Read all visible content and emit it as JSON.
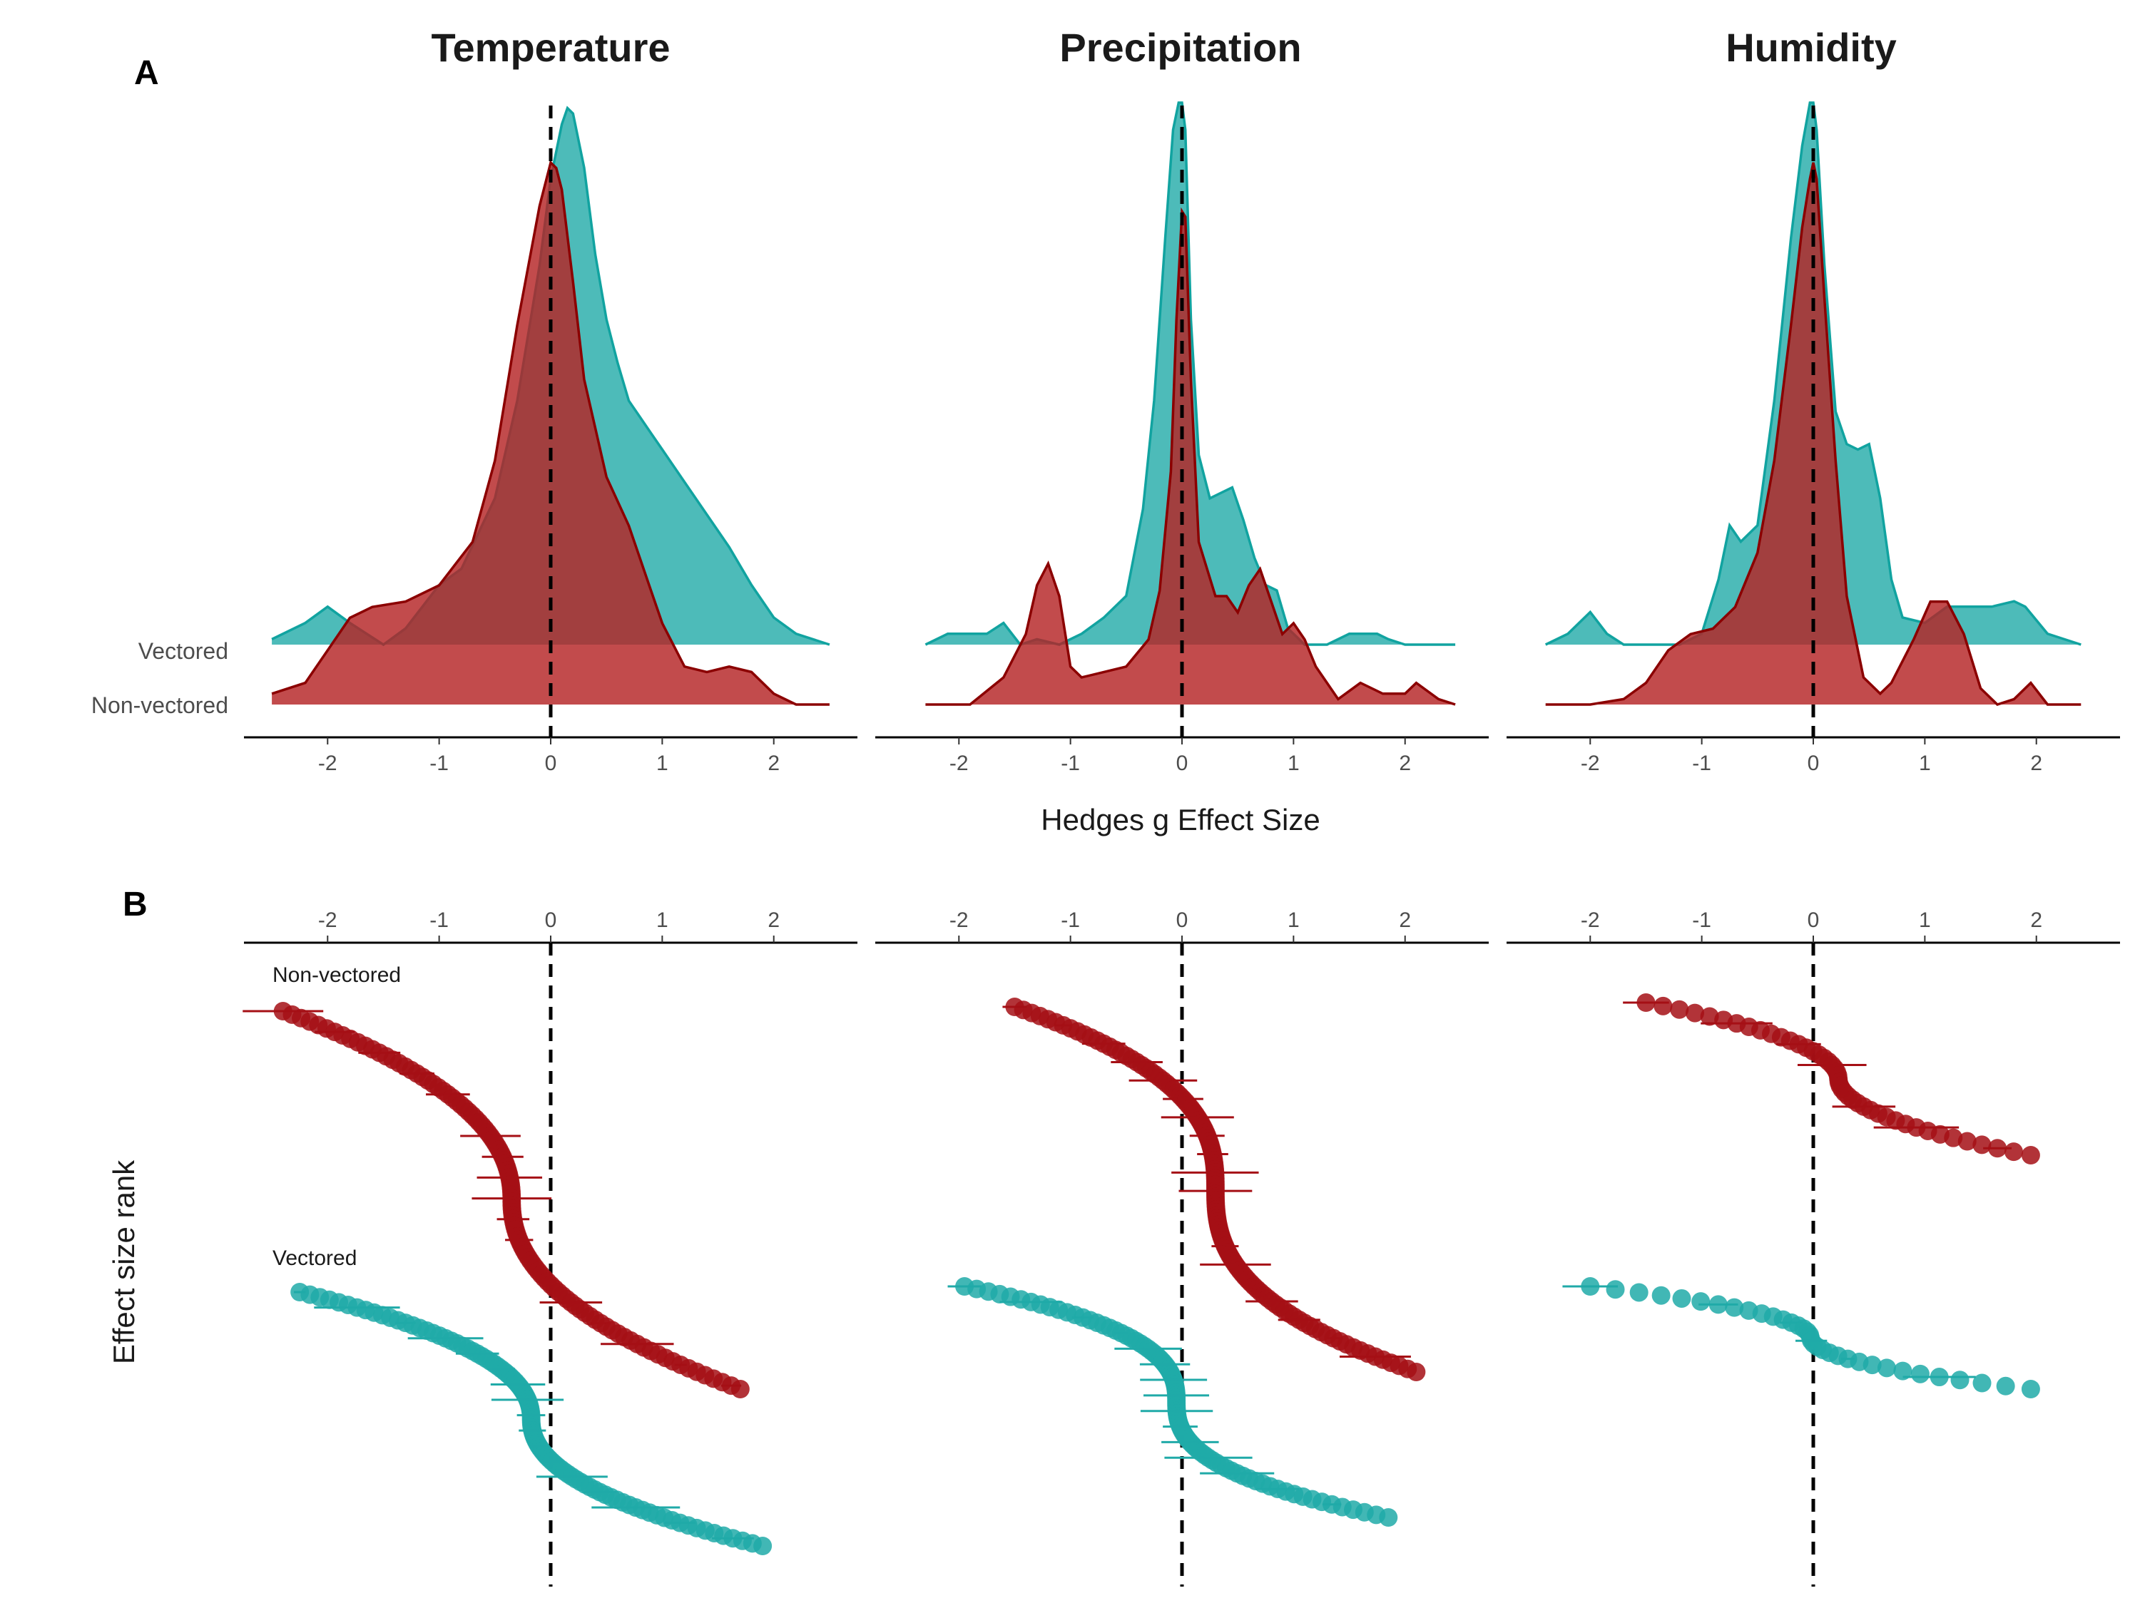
{
  "figure": {
    "panel_letters": [
      "A",
      "B"
    ],
    "x_axis_title": "Hedges g Effect Size",
    "y_axis_title_b": "Effect size rank"
  },
  "colors": {
    "vectored": "#20aaa8",
    "vectored_line": "#11a3a0",
    "non_vectored": "#b52325",
    "non_vectored_line": "#8b0000",
    "non_vectored_dot": "#a50f15",
    "overlap": "#853d3d",
    "reference_line": "#000000"
  },
  "chart_data": [
    {
      "type": "area",
      "panel": "A",
      "title": "Temperature",
      "xlabel": "Hedges g Effect Size",
      "xticks": [
        -2,
        -1,
        0,
        1,
        2
      ],
      "xlim": [
        -2.75,
        2.75
      ],
      "row_labels": [
        "Vectored",
        "Non-vectored"
      ],
      "reference_line_x": 0,
      "series": [
        {
          "name": "Vectored",
          "x": [
            -2.5,
            -2.2,
            -2.0,
            -1.8,
            -1.5,
            -1.3,
            -1.0,
            -0.8,
            -0.5,
            -0.3,
            -0.1,
            0.0,
            0.1,
            0.15,
            0.2,
            0.3,
            0.4,
            0.5,
            0.6,
            0.7,
            0.8,
            0.9,
            1.0,
            1.2,
            1.4,
            1.6,
            1.8,
            2.0,
            2.2,
            2.5
          ],
          "density": [
            0.01,
            0.04,
            0.07,
            0.04,
            0.0,
            0.03,
            0.11,
            0.14,
            0.27,
            0.45,
            0.7,
            0.86,
            0.96,
            0.99,
            0.98,
            0.88,
            0.72,
            0.6,
            0.52,
            0.45,
            0.42,
            0.39,
            0.36,
            0.3,
            0.24,
            0.18,
            0.11,
            0.05,
            0.02,
            0.0
          ]
        },
        {
          "name": "Non-vectored",
          "x": [
            -2.5,
            -2.2,
            -2.0,
            -1.8,
            -1.6,
            -1.3,
            -1.0,
            -0.7,
            -0.5,
            -0.3,
            -0.1,
            0.0,
            0.05,
            0.1,
            0.2,
            0.3,
            0.5,
            0.7,
            0.9,
            1.0,
            1.2,
            1.4,
            1.6,
            1.8,
            2.0,
            2.2,
            2.5
          ],
          "density": [
            0.02,
            0.04,
            0.1,
            0.16,
            0.18,
            0.19,
            0.22,
            0.3,
            0.45,
            0.7,
            0.92,
            1.0,
            0.99,
            0.95,
            0.78,
            0.6,
            0.42,
            0.33,
            0.21,
            0.15,
            0.07,
            0.06,
            0.07,
            0.06,
            0.02,
            0.0,
            0.0
          ]
        }
      ]
    },
    {
      "type": "area",
      "panel": "A",
      "title": "Precipitation",
      "xlabel": "Hedges g Effect Size",
      "xticks": [
        -2,
        -1,
        0,
        1,
        2
      ],
      "xlim": [
        -2.75,
        2.75
      ],
      "row_labels": [
        "Vectored",
        "Non-vectored"
      ],
      "reference_line_x": 0,
      "series": [
        {
          "name": "Vectored",
          "x": [
            -2.3,
            -2.1,
            -1.9,
            -1.75,
            -1.6,
            -1.45,
            -1.3,
            -1.1,
            -0.9,
            -0.7,
            -0.5,
            -0.35,
            -0.25,
            -0.15,
            -0.08,
            -0.03,
            0.0,
            0.03,
            0.08,
            0.15,
            0.25,
            0.35,
            0.45,
            0.55,
            0.65,
            0.75,
            0.85,
            0.95,
            1.1,
            1.3,
            1.5,
            1.6,
            1.75,
            1.85,
            2.0,
            2.2,
            2.45
          ],
          "density": [
            0.0,
            0.02,
            0.02,
            0.02,
            0.04,
            0.0,
            0.01,
            0.0,
            0.02,
            0.05,
            0.09,
            0.25,
            0.45,
            0.75,
            0.95,
            1.0,
            1.0,
            0.95,
            0.6,
            0.35,
            0.27,
            0.28,
            0.29,
            0.23,
            0.16,
            0.11,
            0.1,
            0.03,
            0.0,
            0.0,
            0.02,
            0.02,
            0.02,
            0.01,
            0.0,
            0.0,
            0.0
          ]
        },
        {
          "name": "Non-vectored",
          "x": [
            -2.3,
            -1.9,
            -1.6,
            -1.4,
            -1.3,
            -1.2,
            -1.1,
            -1.0,
            -0.9,
            -0.7,
            -0.5,
            -0.3,
            -0.2,
            -0.1,
            -0.05,
            0.0,
            0.03,
            0.08,
            0.15,
            0.3,
            0.4,
            0.5,
            0.6,
            0.7,
            0.8,
            0.9,
            1.0,
            1.1,
            1.2,
            1.4,
            1.6,
            1.8,
            2.0,
            2.1,
            2.3,
            2.45
          ],
          "density": [
            0.0,
            0.0,
            0.05,
            0.13,
            0.22,
            0.26,
            0.2,
            0.07,
            0.05,
            0.06,
            0.07,
            0.12,
            0.21,
            0.43,
            0.71,
            0.91,
            0.9,
            0.6,
            0.3,
            0.2,
            0.2,
            0.17,
            0.22,
            0.25,
            0.19,
            0.13,
            0.15,
            0.12,
            0.07,
            0.01,
            0.04,
            0.02,
            0.02,
            0.04,
            0.01,
            0.0
          ]
        }
      ]
    },
    {
      "type": "area",
      "panel": "A",
      "title": "Humidity",
      "xlabel": "Hedges g Effect Size",
      "xticks": [
        -2,
        -1,
        0,
        1,
        2
      ],
      "xlim": [
        -2.75,
        2.75
      ],
      "row_labels": [
        "Vectored",
        "Non-vectored"
      ],
      "reference_line_x": 0,
      "series": [
        {
          "name": "Vectored",
          "x": [
            -2.4,
            -2.2,
            -2.0,
            -1.85,
            -1.7,
            -1.4,
            -1.2,
            -1.0,
            -0.85,
            -0.75,
            -0.65,
            -0.5,
            -0.35,
            -0.2,
            -0.1,
            -0.03,
            0.0,
            0.03,
            0.1,
            0.2,
            0.3,
            0.4,
            0.5,
            0.6,
            0.7,
            0.8,
            1.0,
            1.2,
            1.4,
            1.6,
            1.8,
            1.9,
            2.1,
            2.4
          ],
          "density": [
            0.0,
            0.02,
            0.06,
            0.02,
            0.0,
            0.0,
            0.0,
            0.02,
            0.12,
            0.22,
            0.19,
            0.22,
            0.45,
            0.75,
            0.92,
            1.0,
            1.0,
            0.95,
            0.7,
            0.43,
            0.37,
            0.36,
            0.37,
            0.27,
            0.12,
            0.05,
            0.04,
            0.07,
            0.07,
            0.07,
            0.08,
            0.07,
            0.02,
            0.0
          ]
        },
        {
          "name": "Non-vectored",
          "x": [
            -2.4,
            -2.0,
            -1.7,
            -1.5,
            -1.3,
            -1.1,
            -0.9,
            -0.7,
            -0.5,
            -0.35,
            -0.2,
            -0.1,
            -0.03,
            0.0,
            0.03,
            0.1,
            0.2,
            0.3,
            0.45,
            0.6,
            0.7,
            0.8,
            0.9,
            1.05,
            1.2,
            1.35,
            1.5,
            1.65,
            1.8,
            1.95,
            2.1,
            2.4
          ],
          "density": [
            0.0,
            0.0,
            0.01,
            0.04,
            0.1,
            0.13,
            0.14,
            0.18,
            0.28,
            0.45,
            0.7,
            0.88,
            0.97,
            1.0,
            0.97,
            0.75,
            0.45,
            0.2,
            0.05,
            0.02,
            0.04,
            0.08,
            0.12,
            0.19,
            0.19,
            0.13,
            0.03,
            0.0,
            0.01,
            0.04,
            0.0,
            0.0
          ]
        }
      ]
    },
    {
      "type": "scatter",
      "panel": "B",
      "title": "Temperature",
      "ylabel": "Effect size rank",
      "xticks": [
        -2,
        -1,
        0,
        1,
        2
      ],
      "xlim": [
        -2.75,
        2.75
      ],
      "reference_line_x": 0,
      "series": [
        {
          "name": "Non-vectored",
          "start_x": -2.4,
          "end_x": 1.7,
          "n": 110,
          "shape": "sigmoid"
        },
        {
          "name": "Vectored",
          "start_x": -2.25,
          "end_x": 1.9,
          "n": 100,
          "shape": "sigmoid"
        }
      ]
    },
    {
      "type": "scatter",
      "panel": "B",
      "title": "Precipitation",
      "ylabel": "Effect size rank",
      "xticks": [
        -2,
        -1,
        0,
        1,
        2
      ],
      "xlim": [
        -2.75,
        2.75
      ],
      "reference_line_x": 0,
      "series": [
        {
          "name": "Non-vectored",
          "start_x": -1.5,
          "end_x": 2.1,
          "n": 120,
          "shape": "sigmoid"
        },
        {
          "name": "Vectored",
          "start_x": -1.95,
          "end_x": 1.85,
          "n": 90,
          "shape": "sigmoid"
        }
      ]
    },
    {
      "type": "scatter",
      "panel": "B",
      "title": "Humidity",
      "ylabel": "Effect size rank",
      "xticks": [
        -2,
        -1,
        0,
        1,
        2
      ],
      "xlim": [
        -2.75,
        2.75
      ],
      "reference_line_x": 0,
      "series": [
        {
          "name": "Non-vectored",
          "start_x": -1.5,
          "end_x": 1.95,
          "n": 45,
          "shape": "sigmoid"
        },
        {
          "name": "Vectored",
          "start_x": -2.0,
          "end_x": 1.95,
          "n": 35,
          "shape": "sigmoid"
        }
      ]
    }
  ]
}
